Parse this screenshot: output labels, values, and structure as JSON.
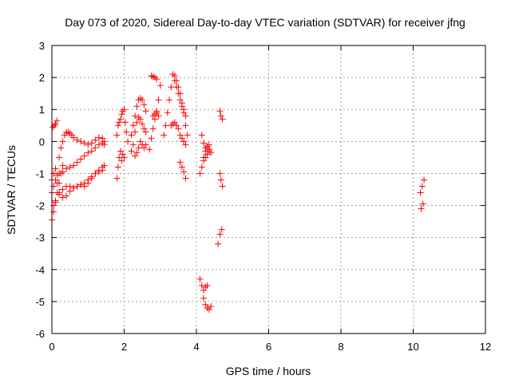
{
  "chart_data": {
    "type": "scatter",
    "title": "Day 073 of 2020, Sidereal Day-to-day VTEC variation (SDTVAR) for receiver jfng",
    "xlabel": "GPS time / hours",
    "ylabel": "SDTVAR / TECUs",
    "xlim": [
      0,
      12
    ],
    "ylim": [
      -6,
      3
    ],
    "xticks": [
      0,
      2,
      4,
      6,
      8,
      10,
      12
    ],
    "yticks": [
      -6,
      -5,
      -4,
      -3,
      -2,
      -1,
      0,
      1,
      2,
      3
    ],
    "grid": true,
    "marker": "+",
    "color": "#ff0000",
    "series": [
      {
        "name": "SDTVAR",
        "segments": [
          {
            "x": [
              0.03,
              0.07,
              0.1,
              0.14
            ],
            "y": [
              0.45,
              0.5,
              0.55,
              0.65
            ]
          },
          {
            "x": [
              0.0,
              0.05,
              0.1,
              0.15,
              0.2,
              0.25,
              0.3
            ],
            "y": [
              -2.45,
              -2.2,
              -1.9,
              -1.6,
              -1.3,
              -1.0,
              -0.75
            ]
          },
          {
            "x": [
              0.2,
              0.25,
              0.3,
              0.35,
              0.4,
              0.45,
              0.5,
              0.55,
              0.6,
              0.7,
              0.8,
              0.9,
              1.0,
              1.1,
              1.2,
              1.3,
              1.4,
              1.45
            ],
            "y": [
              -0.5,
              -0.2,
              0.0,
              0.2,
              0.28,
              0.3,
              0.25,
              0.2,
              0.12,
              0.05,
              0.0,
              -0.05,
              -0.1,
              -0.05,
              0.05,
              0.12,
              0.1,
              0.0
            ]
          },
          {
            "x": [
              0.0,
              0.05,
              0.1,
              0.15,
              0.2,
              0.3,
              0.4,
              0.5,
              0.6,
              0.7,
              0.8,
              0.9,
              1.0,
              1.1,
              1.2,
              1.3,
              1.4,
              1.45
            ],
            "y": [
              -1.6,
              -1.4,
              -1.2,
              -1.05,
              -1.0,
              -0.95,
              -0.85,
              -0.8,
              -0.75,
              -0.65,
              -0.55,
              -0.45,
              -0.35,
              -0.3,
              -0.2,
              -0.1,
              -0.05,
              -0.1
            ]
          },
          {
            "x": [
              0.0,
              0.05,
              0.1,
              0.15,
              0.2,
              0.3,
              0.4,
              0.5,
              0.6,
              0.7,
              0.8,
              0.9,
              1.0,
              1.1,
              1.2,
              1.3,
              1.4,
              1.45
            ],
            "y": [
              -1.2,
              -1.0,
              -0.85,
              -1.3,
              -1.6,
              -1.75,
              -1.7,
              -1.55,
              -1.45,
              -1.4,
              -1.35,
              -1.4,
              -1.3,
              -1.15,
              -1.0,
              -0.9,
              -0.8,
              -0.75
            ]
          },
          {
            "x": [
              0.05,
              0.1,
              0.2,
              0.3,
              0.4,
              0.5,
              0.6,
              0.7,
              0.8,
              0.9,
              1.0,
              1.1,
              1.2,
              1.3,
              1.4
            ],
            "y": [
              -2.0,
              -1.85,
              -1.65,
              -1.5,
              -1.4,
              -1.4,
              -1.45,
              -1.4,
              -1.35,
              -1.3,
              -1.2,
              -1.1,
              -1.0,
              -0.95,
              -0.9
            ]
          },
          {
            "x": [
              1.8,
              1.83,
              1.86,
              1.9,
              1.93,
              1.96,
              2.0
            ],
            "y": [
              -1.15,
              -0.8,
              -0.5,
              -0.3,
              -0.6,
              -0.4,
              -0.5
            ]
          },
          {
            "x": [
              1.8,
              1.83,
              1.86,
              1.9,
              1.93,
              1.96,
              2.0,
              2.03,
              2.06,
              2.1
            ],
            "y": [
              0.2,
              0.5,
              0.6,
              0.7,
              0.85,
              0.95,
              1.0,
              0.6,
              0.3,
              0.0
            ]
          },
          {
            "x": [
              2.2,
              2.25,
              2.3,
              2.35,
              2.4,
              2.45,
              2.5,
              2.55,
              2.6
            ],
            "y": [
              0.2,
              0.5,
              0.8,
              1.1,
              1.3,
              1.35,
              1.3,
              1.15,
              0.95
            ]
          },
          {
            "x": [
              2.2,
              2.25,
              2.3,
              2.35,
              2.4,
              2.45,
              2.5,
              2.55,
              2.6
            ],
            "y": [
              -0.3,
              -0.1,
              0.3,
              0.6,
              0.75,
              0.7,
              0.55,
              0.4,
              0.3
            ]
          },
          {
            "x": [
              2.3,
              2.35,
              2.4,
              2.45,
              2.5,
              2.55,
              2.6
            ],
            "y": [
              -0.45,
              -0.35,
              -0.2,
              0.0,
              -0.1,
              -0.2,
              -0.1
            ]
          },
          {
            "x": [
              2.75,
              2.8,
              2.85,
              2.9
            ],
            "y": [
              2.05,
              2.03,
              2.0,
              1.95
            ]
          },
          {
            "x": [
              2.7,
              2.75,
              2.8,
              2.85,
              2.9,
              2.95,
              3.0
            ],
            "y": [
              -0.25,
              0.1,
              0.4,
              0.7,
              0.95,
              1.3,
              1.75
            ]
          },
          {
            "x": [
              2.8,
              2.85,
              2.9,
              2.95
            ],
            "y": [
              0.8,
              0.85,
              0.9,
              0.8
            ]
          },
          {
            "x": [
              3.1,
              3.15,
              3.2,
              3.25,
              3.3,
              3.35,
              3.4,
              3.45,
              3.5,
              3.55,
              3.6,
              3.65,
              3.7
            ],
            "y": [
              0.2,
              0.5,
              0.9,
              1.3,
              1.7,
              2.1,
              2.05,
              1.9,
              1.7,
              1.5,
              1.2,
              1.0,
              0.8
            ]
          },
          {
            "x": [
              3.3,
              3.35,
              3.4,
              3.45,
              3.5,
              3.55,
              3.6,
              3.65,
              3.7
            ],
            "y": [
              0.5,
              0.55,
              0.6,
              0.5,
              0.4,
              0.2,
              0.1,
              0.0,
              -0.1
            ]
          },
          {
            "x": [
              3.4,
              3.45,
              3.5,
              3.55,
              3.6,
              3.65,
              3.7,
              3.75
            ],
            "y": [
              1.9,
              1.7,
              1.5,
              1.3,
              1.1,
              0.9,
              0.5,
              0.2
            ]
          },
          {
            "x": [
              3.55,
              3.6,
              3.65,
              3.7
            ],
            "y": [
              -0.65,
              -0.8,
              -0.95,
              -1.15
            ]
          },
          {
            "x": [
              4.1,
              4.15,
              4.2,
              4.25,
              4.3,
              4.35
            ],
            "y": [
              -1.0,
              -0.8,
              -0.6,
              -0.5,
              -0.4,
              -0.3
            ]
          },
          {
            "x": [
              4.15,
              4.2,
              4.25,
              4.3,
              4.35
            ],
            "y": [
              0.2,
              -0.05,
              -0.2,
              -0.15,
              -0.1
            ]
          },
          {
            "x": [
              4.2,
              4.25,
              4.3,
              4.35,
              4.4
            ],
            "y": [
              -0.5,
              -0.3,
              -0.2,
              -0.25,
              -0.35
            ]
          },
          {
            "x": [
              4.1,
              4.15,
              4.2,
              4.25,
              4.3
            ],
            "y": [
              -4.3,
              -4.5,
              -4.65,
              -4.55,
              -4.5
            ]
          },
          {
            "x": [
              4.2,
              4.25,
              4.3,
              4.35,
              4.4
            ],
            "y": [
              -4.9,
              -5.1,
              -5.2,
              -5.25,
              -5.15
            ]
          },
          {
            "x": [
              4.65,
              4.68,
              4.72
            ],
            "y": [
              0.95,
              0.8,
              0.7
            ]
          },
          {
            "x": [
              4.65,
              4.68,
              4.72
            ],
            "y": [
              -1.0,
              -1.2,
              -1.4
            ]
          },
          {
            "x": [
              4.6,
              4.65,
              4.7
            ],
            "y": [
              -3.2,
              -2.9,
              -2.75
            ]
          },
          {
            "x": [
              10.2,
              10.25,
              10.3
            ],
            "y": [
              -1.6,
              -1.4,
              -1.2
            ]
          },
          {
            "x": [
              10.22,
              10.27
            ],
            "y": [
              -2.1,
              -1.95
            ]
          }
        ]
      }
    ]
  }
}
